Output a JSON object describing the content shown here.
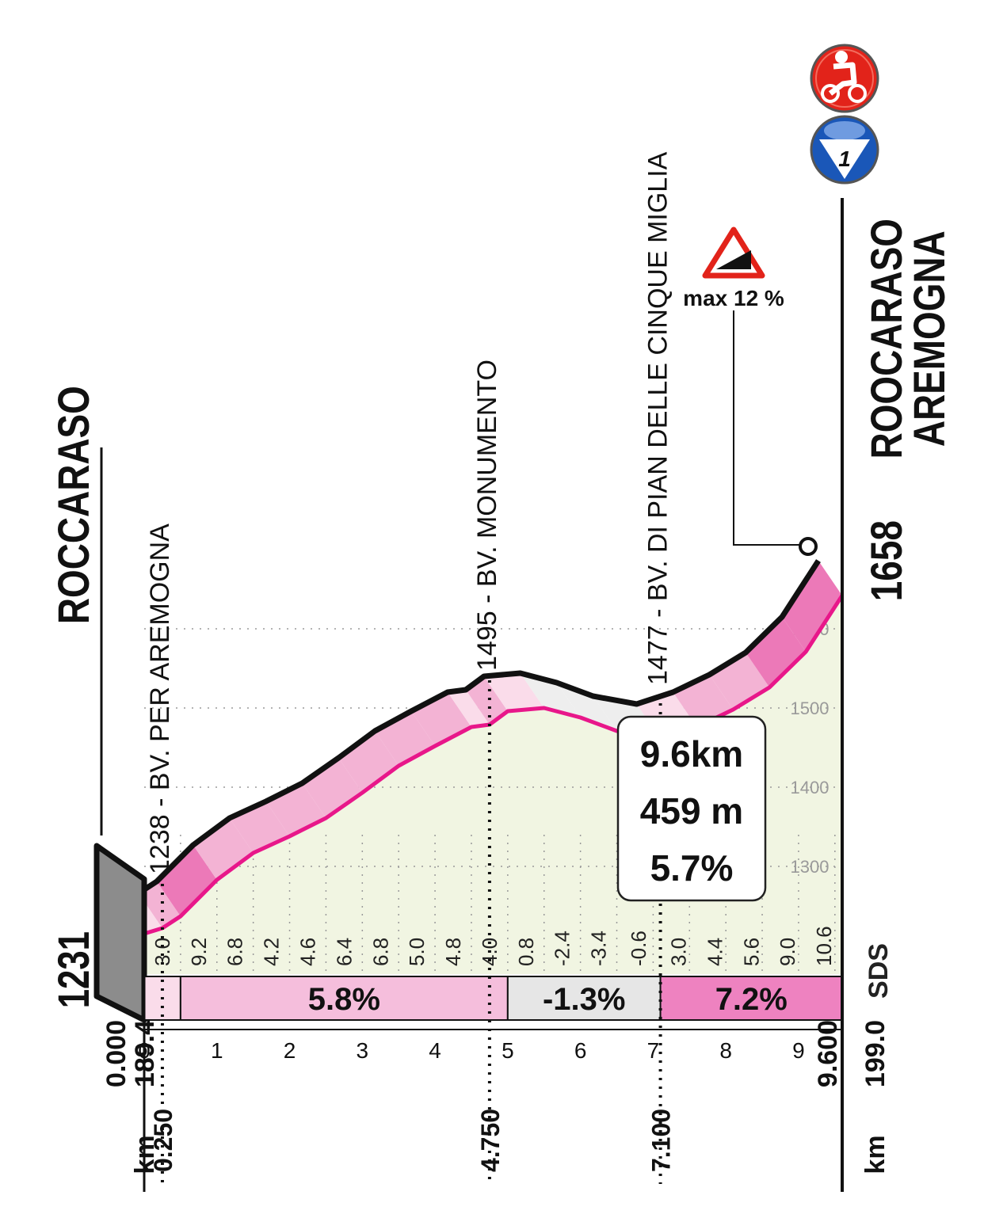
{
  "chart_data": {
    "type": "area",
    "start": {
      "altitude": "1231",
      "name": "ROCCARASO",
      "km_total": "189.4",
      "km_label": "km",
      "km_partial": "0.000"
    },
    "finish": {
      "altitude": "1658",
      "name_line1": "ROOCARASO",
      "name_line2": "AREMOGNA",
      "km_total": "199.0",
      "km_label": "km",
      "km_partial": "9.600"
    },
    "waypoints": [
      {
        "label": "1238 - BV. PER AREMOGNA",
        "km_label": "0.250",
        "km": 0.25,
        "altitude": 1238
      },
      {
        "label": "1495 - BV. MONUMENTO",
        "km_label": "4.750",
        "km": 4.75,
        "altitude": 1495
      },
      {
        "label": "1477 - BV. DI PIAN DELLE CINQUE MIGLIA",
        "km_label": "7.100",
        "km": 7.1,
        "altitude": 1477
      }
    ],
    "km_ticks": [
      "0",
      "1",
      "2",
      "3",
      "4",
      "5",
      "6",
      "7",
      "8",
      "9"
    ],
    "altitude_ticks": [
      "1300",
      "1400",
      "1500",
      "1600"
    ],
    "ylim": [
      1231,
      1658
    ],
    "xlim": [
      0,
      9.6
    ],
    "gradients": [
      {
        "km_start": 0,
        "km_end": 0.5,
        "value": "3.0"
      },
      {
        "km_start": 0.5,
        "km_end": 1,
        "value": "9.2"
      },
      {
        "km_start": 1,
        "km_end": 1.5,
        "value": "6.8"
      },
      {
        "km_start": 1.5,
        "km_end": 2,
        "value": "4.2"
      },
      {
        "km_start": 2,
        "km_end": 2.5,
        "value": "4.6"
      },
      {
        "km_start": 2.5,
        "km_end": 3,
        "value": "6.4"
      },
      {
        "km_start": 3,
        "km_end": 3.5,
        "value": "6.8"
      },
      {
        "km_start": 3.5,
        "km_end": 4,
        "value": "5.0"
      },
      {
        "km_start": 4,
        "km_end": 4.5,
        "value": "4.8"
      },
      {
        "km_start": 4.5,
        "km_end": 5,
        "value": "4.0"
      },
      {
        "km_start": 5,
        "km_end": 5.5,
        "value": "0.8"
      },
      {
        "km_start": 5.5,
        "km_end": 6,
        "value": "-2.4"
      },
      {
        "km_start": 6,
        "km_end": 6.5,
        "value": "-3.4"
      },
      {
        "km_start": 6.5,
        "km_end": 7.1,
        "value": "-0.6"
      },
      {
        "km_start": 7.1,
        "km_end": 7.6,
        "value": "3.0"
      },
      {
        "km_start": 7.6,
        "km_end": 8.1,
        "value": "4.4"
      },
      {
        "km_start": 8.1,
        "km_end": 8.6,
        "value": "5.6"
      },
      {
        "km_start": 8.6,
        "km_end": 9.1,
        "value": "9.0"
      },
      {
        "km_start": 9.1,
        "km_end": 9.6,
        "value": "10.6"
      }
    ],
    "sections": [
      {
        "km_start": 0.5,
        "km_end": 5,
        "label": "5.8%",
        "color": "#f5bedc"
      },
      {
        "km_start": 5,
        "km_end": 7.1,
        "label": "-1.3%",
        "color": "#e6e6e6"
      },
      {
        "km_start": 7.1,
        "km_end": 9.6,
        "label": "7.2%",
        "color": "#ee82c0"
      }
    ],
    "profile": [
      {
        "km": 0,
        "altitude": 1231
      },
      {
        "km": 0.25,
        "altitude": 1238
      },
      {
        "km": 0.5,
        "altitude": 1253
      },
      {
        "km": 1,
        "altitude": 1299
      },
      {
        "km": 1.5,
        "altitude": 1333
      },
      {
        "km": 2,
        "altitude": 1354
      },
      {
        "km": 2.5,
        "altitude": 1377
      },
      {
        "km": 3,
        "altitude": 1409
      },
      {
        "km": 3.5,
        "altitude": 1443
      },
      {
        "km": 4,
        "altitude": 1468
      },
      {
        "km": 4.5,
        "altitude": 1492
      },
      {
        "km": 4.75,
        "altitude": 1495
      },
      {
        "km": 5,
        "altitude": 1512
      },
      {
        "km": 5.5,
        "altitude": 1516
      },
      {
        "km": 6,
        "altitude": 1504
      },
      {
        "km": 6.5,
        "altitude": 1487
      },
      {
        "km": 7.1,
        "altitude": 1477
      },
      {
        "km": 7.6,
        "altitude": 1492
      },
      {
        "km": 8.1,
        "altitude": 1514
      },
      {
        "km": 8.6,
        "altitude": 1542
      },
      {
        "km": 9.1,
        "altitude": 1587
      },
      {
        "km": 9.6,
        "altitude": 1658
      }
    ],
    "summary": {
      "distance": "9.6km",
      "elevation_gain": "459 m",
      "average_gradient": "5.7%"
    },
    "max_gradient": {
      "label": "max 12 %",
      "km": 9.45
    },
    "brand": "SDS",
    "badge_number": "1",
    "colors": {
      "accent": "#e8178a",
      "background": "#f1f5e2",
      "ribbon_light": "#fadcea",
      "ribbon_mid": "#f3b3d4",
      "ribbon_dark": "#ec79b8",
      "start_block": "#8c8c8c",
      "badge_red": "#e2231a",
      "badge_blue": "#1a57b8"
    },
    "icons": [
      "cyclist-icon",
      "category-badge-icon",
      "steep-warning-icon"
    ]
  }
}
